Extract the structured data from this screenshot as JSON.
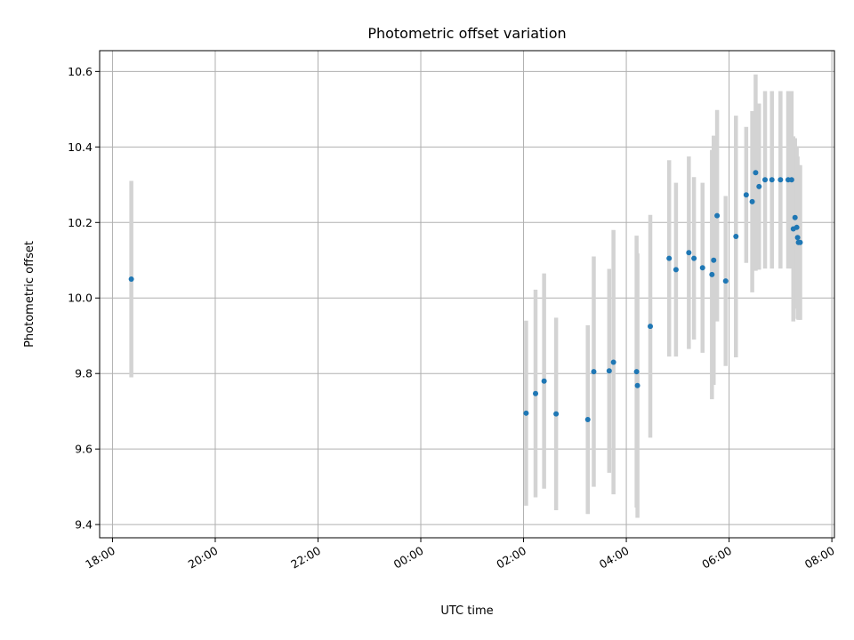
{
  "chart_data": {
    "type": "scatter",
    "title": "Photometric offset variation",
    "xlabel": "UTC time",
    "ylabel": "Photometric offset",
    "x_ticks": [
      "18:00",
      "20:00",
      "22:00",
      "00:00",
      "02:00",
      "04:00",
      "06:00",
      "08:00"
    ],
    "y_ticks": [
      "9.4",
      "9.6",
      "9.8",
      "10.0",
      "10.2",
      "10.4",
      "10.6"
    ],
    "xlim_hours": [
      17.75,
      32.05
    ],
    "ylim": [
      9.365,
      10.655
    ],
    "grid": true,
    "colors": {
      "point": "#1f77b4",
      "errorbar": "#d3d3d3",
      "grid": "#b0b0b0",
      "axes": "#000000"
    },
    "series": [
      {
        "points": [
          {
            "x": "18:22",
            "y": 10.05,
            "err": 0.26
          },
          {
            "x": "02:03",
            "y": 9.695,
            "err": 0.245
          },
          {
            "x": "02:14",
            "y": 9.747,
            "err": 0.275
          },
          {
            "x": "02:24",
            "y": 9.78,
            "err": 0.285
          },
          {
            "x": "02:38",
            "y": 9.693,
            "err": 0.255
          },
          {
            "x": "03:15",
            "y": 9.678,
            "err": 0.25
          },
          {
            "x": "03:22",
            "y": 9.805,
            "err": 0.305
          },
          {
            "x": "03:40",
            "y": 9.807,
            "err": 0.27
          },
          {
            "x": "03:45",
            "y": 9.83,
            "err": 0.35
          },
          {
            "x": "04:12",
            "y": 9.805,
            "err": 0.36
          },
          {
            "x": "04:13",
            "y": 9.768,
            "err": 0.35
          },
          {
            "x": "04:28",
            "y": 9.925,
            "err": 0.295
          },
          {
            "x": "04:50",
            "y": 10.105,
            "err": 0.26
          },
          {
            "x": "04:58",
            "y": 10.075,
            "err": 0.23
          },
          {
            "x": "05:13",
            "y": 10.12,
            "err": 0.255
          },
          {
            "x": "05:19",
            "y": 10.105,
            "err": 0.215
          },
          {
            "x": "05:29",
            "y": 10.08,
            "err": 0.225
          },
          {
            "x": "05:40",
            "y": 10.062,
            "err": 0.33
          },
          {
            "x": "05:42",
            "y": 10.1,
            "err": 0.33
          },
          {
            "x": "05:46",
            "y": 10.218,
            "err": 0.28
          },
          {
            "x": "05:56",
            "y": 10.045,
            "err": 0.225
          },
          {
            "x": "06:08",
            "y": 10.163,
            "err": 0.32
          },
          {
            "x": "06:20",
            "y": 10.273,
            "err": 0.18
          },
          {
            "x": "06:27",
            "y": 10.255,
            "err": 0.24
          },
          {
            "x": "06:31",
            "y": 10.332,
            "err": 0.26
          },
          {
            "x": "06:35",
            "y": 10.295,
            "err": 0.22
          },
          {
            "x": "06:42",
            "y": 10.313,
            "err": 0.235
          },
          {
            "x": "06:50",
            "y": 10.313,
            "err": 0.235
          },
          {
            "x": "07:00",
            "y": 10.313,
            "err": 0.235
          },
          {
            "x": "07:09",
            "y": 10.313,
            "err": 0.235
          },
          {
            "x": "07:13",
            "y": 10.313,
            "err": 0.235
          },
          {
            "x": "07:15",
            "y": 10.183,
            "err": 0.245
          },
          {
            "x": "07:17",
            "y": 10.213,
            "err": 0.21
          },
          {
            "x": "07:19",
            "y": 10.187,
            "err": 0.215
          },
          {
            "x": "07:20",
            "y": 10.16,
            "err": 0.215
          },
          {
            "x": "07:21",
            "y": 10.147,
            "err": 0.205
          },
          {
            "x": "07:23",
            "y": 10.147,
            "err": 0.205
          }
        ]
      }
    ]
  }
}
